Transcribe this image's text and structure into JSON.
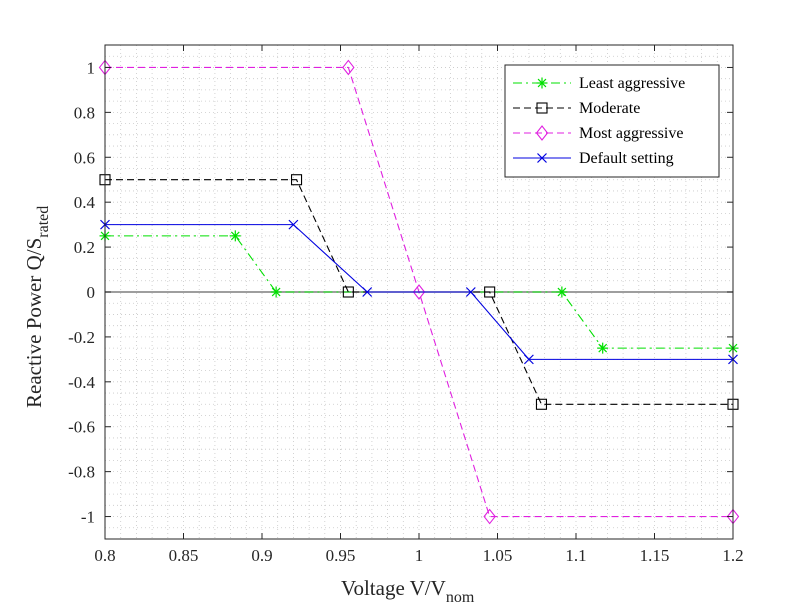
{
  "chart_data": {
    "type": "line",
    "xlabel": "Voltage V/V",
    "xlabel_sub": "nom",
    "ylabel": "Reactive Power Q/S",
    "ylabel_sub": "rated",
    "xlim": [
      0.8,
      1.2
    ],
    "ylim": [
      -1.1,
      1.1
    ],
    "xticks": [
      0.8,
      0.85,
      0.9,
      0.95,
      1,
      1.05,
      1.1,
      1.15,
      1.2
    ],
    "xtick_labels": [
      "0.8",
      "0.85",
      "0.9",
      "0.95",
      "1",
      "1.05",
      "1.1",
      "1.15",
      "1.2"
    ],
    "yticks": [
      1,
      0.8,
      0.6,
      0.4,
      0.2,
      0,
      -0.2,
      -0.4,
      -0.6,
      -0.8,
      -1
    ],
    "ytick_labels": [
      "1",
      "0.8",
      "0.6",
      "0.4",
      "0.2",
      "0",
      "-0.2",
      "-0.4",
      "-0.6",
      "-0.8",
      "-1"
    ],
    "grid": "minor dotted",
    "legend_position": "top-right",
    "zero_line": true,
    "series": [
      {
        "name": "Least aggressive",
        "color": "#00e000",
        "line": "dashdot",
        "marker": "asterisk",
        "points": [
          {
            "x": 0.8,
            "y": 0.25
          },
          {
            "x": 0.883,
            "y": 0.25
          },
          {
            "x": 0.909,
            "y": 0
          },
          {
            "x": 1.091,
            "y": 0
          },
          {
            "x": 1.117,
            "y": -0.25
          },
          {
            "x": 1.2,
            "y": -0.25
          }
        ]
      },
      {
        "name": "Moderate",
        "color": "#000000",
        "line": "dashed",
        "marker": "square",
        "points": [
          {
            "x": 0.8,
            "y": 0.5
          },
          {
            "x": 0.922,
            "y": 0.5
          },
          {
            "x": 0.955,
            "y": 0
          },
          {
            "x": 1.045,
            "y": 0
          },
          {
            "x": 1.078,
            "y": -0.5
          },
          {
            "x": 1.2,
            "y": -0.5
          }
        ]
      },
      {
        "name": "Most aggressive",
        "color": "#e020e0",
        "line": "dashed",
        "marker": "diamond",
        "points": [
          {
            "x": 0.8,
            "y": 1
          },
          {
            "x": 0.955,
            "y": 1
          },
          {
            "x": 1.0,
            "y": 0
          },
          {
            "x": 1.045,
            "y": -1
          },
          {
            "x": 1.2,
            "y": -1
          }
        ]
      },
      {
        "name": "Default setting",
        "color": "#0000e0",
        "line": "solid",
        "marker": "x",
        "points": [
          {
            "x": 0.8,
            "y": 0.3
          },
          {
            "x": 0.92,
            "y": 0.3
          },
          {
            "x": 0.967,
            "y": 0
          },
          {
            "x": 1.033,
            "y": 0
          },
          {
            "x": 1.07,
            "y": -0.3
          },
          {
            "x": 1.2,
            "y": -0.3
          }
        ]
      }
    ]
  }
}
